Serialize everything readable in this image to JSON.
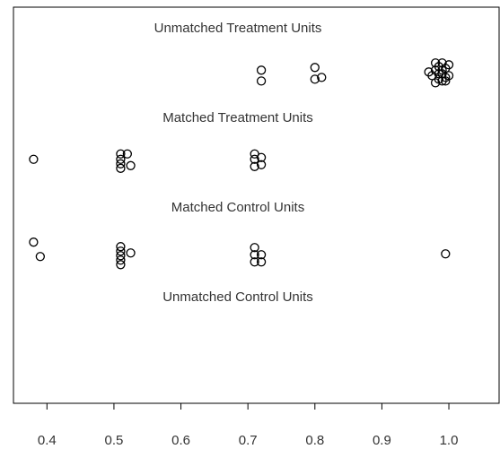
{
  "chart_data": {
    "type": "scatter",
    "xlim": [
      0.35,
      1.075
    ],
    "xticks": [
      0.4,
      0.5,
      0.6,
      0.7,
      0.8,
      0.9,
      {
        "value": 1,
        "label": "1.0"
      }
    ],
    "ylim": [
      0,
      4.4
    ],
    "color": "#000000",
    "series": [
      {
        "name": "Unmatched Treatment Units",
        "x": [
          0.72,
          0.72,
          0.8,
          0.8,
          0.81,
          0.97,
          0.975,
          0.98,
          0.98,
          0.985,
          0.985,
          0.99,
          0.99,
          0.99,
          0.995,
          0.995,
          1.0,
          1.0,
          0.98,
          0.99,
          0.985,
          0.995
        ],
        "values": [
          3.7,
          3.58,
          3.73,
          3.6,
          3.62,
          3.68,
          3.64,
          3.78,
          3.7,
          3.74,
          3.6,
          3.78,
          3.66,
          3.58,
          3.72,
          3.62,
          3.76,
          3.64,
          3.56,
          3.7,
          3.66,
          3.58
        ]
      },
      {
        "name": "Matched Treatment Units",
        "x": [
          0.38,
          0.51,
          0.51,
          0.51,
          0.51,
          0.52,
          0.525,
          0.71,
          0.71,
          0.71,
          0.72,
          0.72
        ],
        "values": [
          2.71,
          2.77,
          2.71,
          2.66,
          2.61,
          2.77,
          2.64,
          2.77,
          2.71,
          2.63,
          2.73,
          2.65
        ]
      },
      {
        "name": "Matched Control Units",
        "x": [
          0.38,
          0.39,
          0.51,
          0.51,
          0.51,
          0.51,
          0.51,
          0.525,
          0.71,
          0.71,
          0.71,
          0.72,
          0.72,
          0.995
        ],
        "values": [
          1.79,
          1.63,
          1.74,
          1.69,
          1.64,
          1.59,
          1.54,
          1.67,
          1.73,
          1.65,
          1.57,
          1.65,
          1.57,
          1.66
        ]
      },
      {
        "name": "Unmatched Control Units",
        "x": [],
        "values": []
      }
    ]
  }
}
